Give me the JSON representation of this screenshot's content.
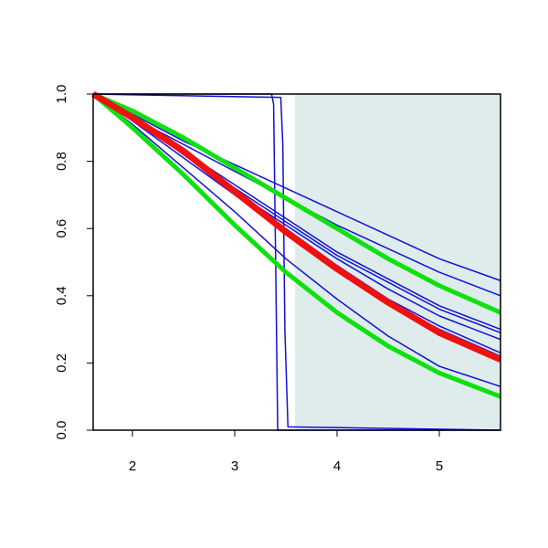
{
  "chart_data": {
    "type": "line",
    "xlim": [
      1.616,
      5.598
    ],
    "ylim": [
      0,
      1
    ],
    "xticks": [
      2,
      3,
      4,
      5
    ],
    "yticks": [
      {
        "value": 0,
        "label": "0.0"
      },
      0.2,
      0.4,
      0.6,
      0.8,
      {
        "value": 1,
        "label": "1.0"
      }
    ],
    "shaded_region": {
      "x": [
        3.59,
        5.598
      ],
      "color": "#deecec"
    },
    "series": [
      {
        "color": "#1010d8",
        "line_width": 1.5,
        "x": [
          1.616,
          2,
          2.5,
          3,
          3.5,
          4,
          4.5,
          5,
          5.598
        ],
        "values": [
          1.0,
          0.94,
          0.86,
          0.79,
          0.72,
          0.65,
          0.58,
          0.51,
          0.445
        ]
      },
      {
        "color": "#1010d8",
        "line_width": 1.5,
        "x": [
          1.616,
          2,
          2.5,
          3,
          3.5,
          4,
          4.5,
          5,
          5.598
        ],
        "values": [
          1.0,
          0.93,
          0.85,
          0.77,
          0.69,
          0.61,
          0.54,
          0.47,
          0.4
        ]
      },
      {
        "color": "#1010d8",
        "line_width": 1.5,
        "x": [
          1.616,
          2,
          2.5,
          3,
          3.5,
          4,
          4.5,
          5,
          5.598
        ],
        "values": [
          1.0,
          0.93,
          0.83,
          0.73,
          0.63,
          0.53,
          0.45,
          0.37,
          0.3
        ]
      },
      {
        "color": "#1010d8",
        "line_width": 1.5,
        "x": [
          1.616,
          2,
          2.5,
          3,
          3.5,
          4,
          4.5,
          5,
          5.598
        ],
        "values": [
          1.0,
          0.93,
          0.82,
          0.72,
          0.62,
          0.52,
          0.44,
          0.36,
          0.29
        ]
      },
      {
        "color": "#1010d8",
        "line_width": 1.5,
        "x": [
          1.616,
          2,
          2.5,
          3,
          3.5,
          4,
          4.5,
          5,
          5.598
        ],
        "values": [
          1.0,
          0.93,
          0.82,
          0.71,
          0.61,
          0.51,
          0.42,
          0.34,
          0.27
        ]
      },
      {
        "color": "#1010d8",
        "line_width": 1.5,
        "x": [
          1.616,
          2,
          2.5,
          3,
          3.5,
          4,
          4.5,
          5,
          5.598
        ],
        "values": [
          1.0,
          0.93,
          0.82,
          0.71,
          0.6,
          0.49,
          0.39,
          0.31,
          0.23
        ]
      },
      {
        "color": "#1010d8",
        "line_width": 1.5,
        "x": [
          1.616,
          2,
          2.5,
          3,
          3.5,
          4,
          4.5,
          5,
          5.598
        ],
        "values": [
          1.0,
          0.92,
          0.81,
          0.7,
          0.59,
          0.48,
          0.38,
          0.3,
          0.22
        ]
      },
      {
        "color": "#1010d8",
        "line_width": 1.5,
        "x": [
          1.616,
          2,
          2.5,
          3,
          3.5,
          4,
          4.5,
          5,
          5.598
        ],
        "values": [
          1.0,
          0.91,
          0.78,
          0.65,
          0.51,
          0.39,
          0.28,
          0.19,
          0.13
        ]
      },
      {
        "color": "#1010d8",
        "line_width": 1.5,
        "x": [
          1.616,
          3.36,
          3.38,
          3.4,
          3.42,
          5.598
        ],
        "values": [
          1.0,
          1.0,
          0.97,
          0.5,
          0.0,
          0.0
        ]
      },
      {
        "color": "#1010d8",
        "line_width": 1.5,
        "x": [
          1.616,
          3.45,
          3.47,
          3.49,
          3.52,
          5.598
        ],
        "values": [
          1.0,
          0.99,
          0.85,
          0.3,
          0.01,
          0.0
        ]
      },
      {
        "color": "#10e010",
        "line_width": 5,
        "x": [
          1.616,
          2,
          2.5,
          3,
          3.5,
          4,
          4.5,
          5,
          5.598
        ],
        "values": [
          1.0,
          0.95,
          0.87,
          0.78,
          0.69,
          0.6,
          0.51,
          0.43,
          0.35
        ]
      },
      {
        "color": "#10e010",
        "line_width": 5,
        "x": [
          1.616,
          2,
          2.5,
          3,
          3.5,
          4,
          4.5,
          5,
          5.598
        ],
        "values": [
          1.0,
          0.9,
          0.76,
          0.61,
          0.47,
          0.35,
          0.25,
          0.17,
          0.1
        ]
      },
      {
        "color": "#f01010",
        "line_width": 7,
        "x": [
          1.616,
          2,
          2.5,
          3,
          3.5,
          4,
          4.5,
          5,
          5.598
        ],
        "values": [
          1.0,
          0.93,
          0.83,
          0.71,
          0.59,
          0.48,
          0.38,
          0.29,
          0.21
        ]
      }
    ]
  }
}
